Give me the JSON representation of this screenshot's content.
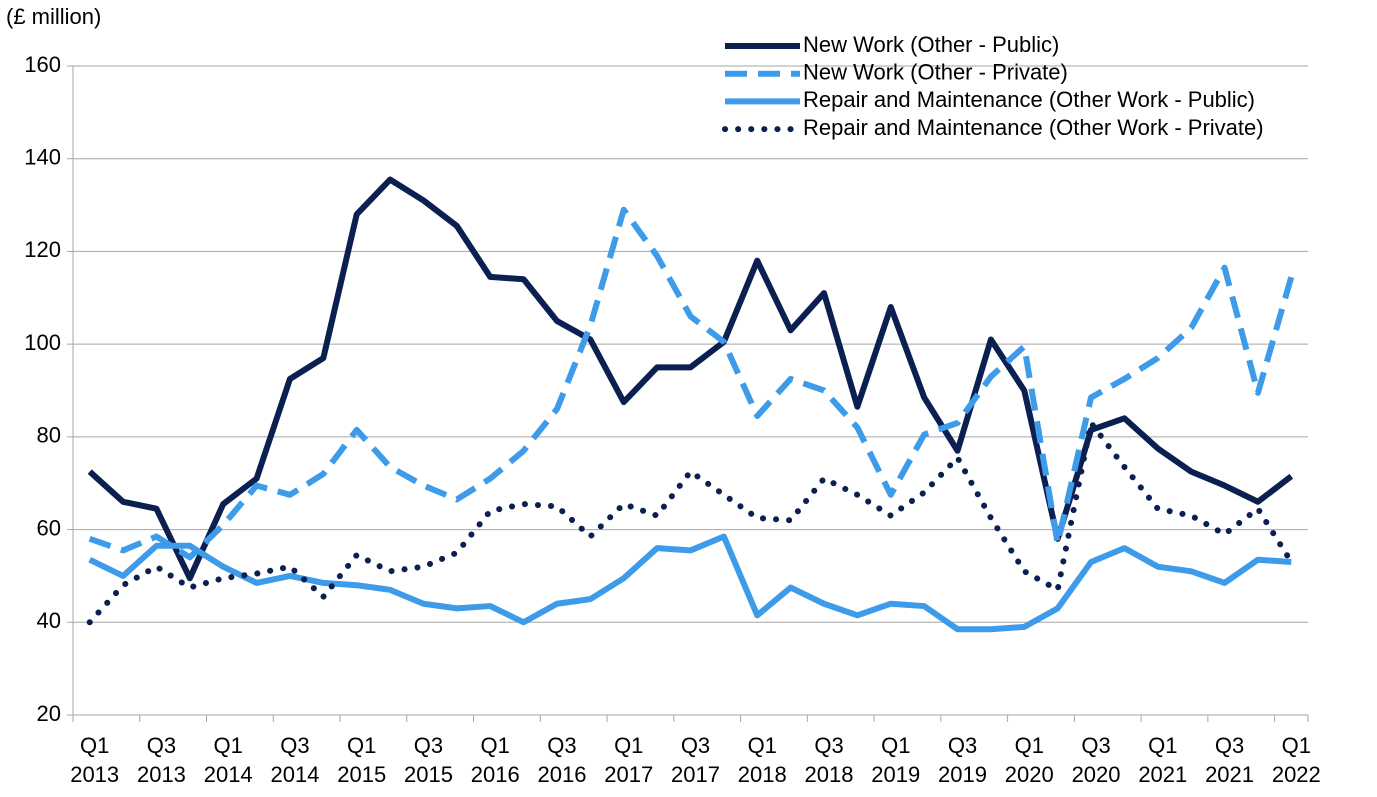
{
  "chart_data": {
    "type": "line",
    "ylabel": "(£ million)",
    "categories": [
      "Q1 2013",
      null,
      "Q3 2013",
      null,
      "Q1 2014",
      null,
      "Q3 2014",
      null,
      "Q1 2015",
      null,
      "Q3 2015",
      null,
      "Q1 2016",
      null,
      "Q3 2016",
      null,
      "Q1 2017",
      null,
      "Q3 2017",
      null,
      "Q1 2018",
      null,
      "Q3 2018",
      null,
      "Q1 2019",
      null,
      "Q3 2019",
      null,
      "Q1 2020",
      null,
      "Q3 2020",
      null,
      "Q1 2021",
      null,
      "Q3 2021",
      null,
      "Q1 2022"
    ],
    "series": [
      {
        "name": "New Work (Other - Public)",
        "color": "#0b1f51",
        "style": "solid",
        "values": [
          72.5,
          66,
          64.5,
          49.5,
          65.5,
          71,
          92.5,
          97,
          128,
          135.5,
          131,
          125.5,
          114.5,
          114,
          105,
          101,
          87.5,
          95,
          95,
          100.5,
          118,
          103,
          111,
          86.5,
          108,
          88.5,
          77,
          101,
          90,
          58,
          81.5,
          84,
          77.5,
          72.5,
          69.5,
          66,
          71.5
        ]
      },
      {
        "name": "New Work (Other - Private)",
        "color": "#3d9be9",
        "style": "dashed",
        "values": [
          58,
          55.5,
          58.5,
          54,
          61,
          69.5,
          67.5,
          72,
          81.5,
          73.5,
          69.5,
          66.5,
          71,
          77,
          86,
          104,
          129,
          119,
          106,
          100.5,
          84.5,
          92.5,
          90,
          82,
          67.5,
          80.5,
          83,
          93,
          99.5,
          57,
          88.5,
          92.5,
          97,
          103.5,
          116.5,
          89.5,
          114.5
        ]
      },
      {
        "name": "Repair and Maintenance (Other Work - Public)",
        "color": "#3d9be9",
        "style": "solid",
        "values": [
          53.5,
          50,
          56.5,
          56.5,
          52,
          48.5,
          50,
          48.5,
          48,
          47,
          44,
          43,
          43.5,
          40,
          44,
          45,
          49.5,
          56,
          55.5,
          58.5,
          41.5,
          47.5,
          44,
          41.5,
          44,
          43.5,
          38.5,
          38.5,
          39,
          43,
          53,
          56,
          52,
          51,
          48.5,
          53.5,
          53
        ]
      },
      {
        "name": "Repair and Maintenance (Other Work - Private)",
        "color": "#0b1f51",
        "style": "dotted",
        "values": [
          40,
          48,
          52,
          47.5,
          49.5,
          50.5,
          52,
          45.5,
          54.5,
          51,
          52,
          55,
          64,
          65.5,
          65,
          58.5,
          65.5,
          63,
          72.5,
          67.5,
          62.5,
          62,
          71,
          67.5,
          63,
          68,
          75.5,
          62.5,
          51,
          47,
          83,
          73.5,
          64.5,
          63,
          59,
          64.5,
          53
        ]
      }
    ],
    "ylim": [
      20,
      160
    ],
    "yticks": [
      20,
      40,
      60,
      80,
      100,
      120,
      140,
      160
    ],
    "grid": true,
    "legend": "upper right"
  }
}
